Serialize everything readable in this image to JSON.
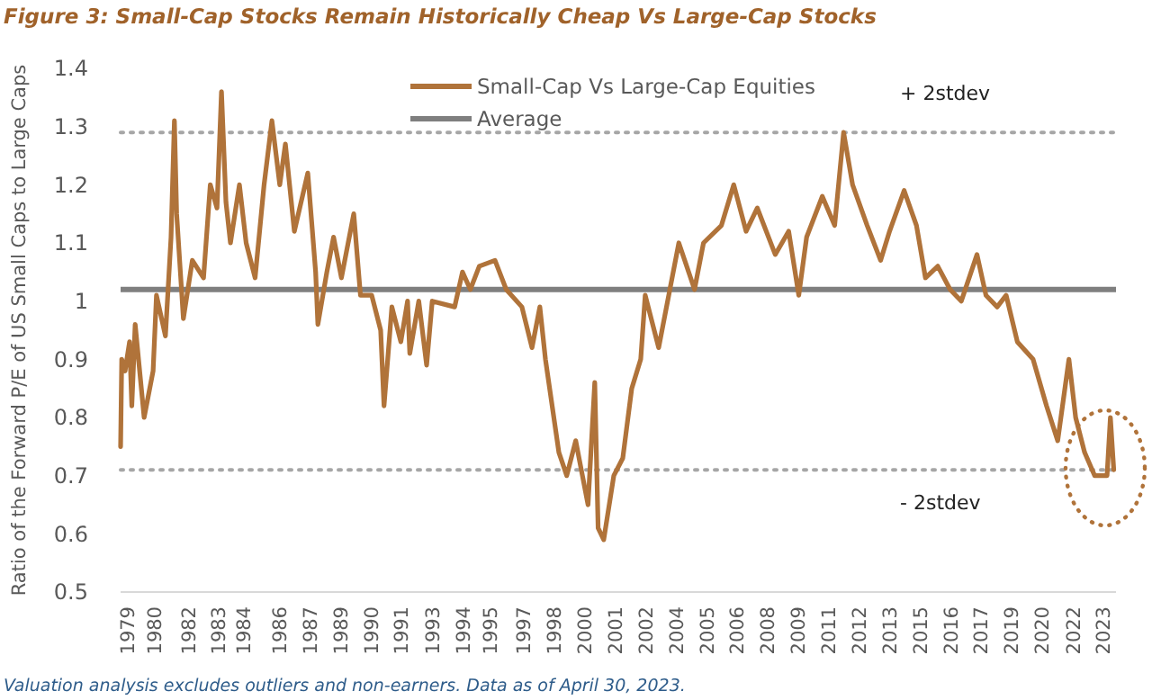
{
  "chart_data": {
    "type": "line",
    "title": "Figure 3: Small-Cap Stocks Remain Historically Cheap Vs Large-Cap Stocks",
    "ylabel": "Ratio of the Forward P/E of US Small Caps to Large Caps",
    "annotations": [
      "Valuation analysis excludes outliers and non-earners.  Data as of April 30, 2023."
    ],
    "series": [
      {
        "name": "Small-Cap Vs Large-Cap Equities",
        "color": "#b0733a",
        "x": [
          1979.0,
          1979.05,
          1979.2,
          1979.4,
          1979.5,
          1979.65,
          1980.05,
          1980.45,
          1980.6,
          1981.0,
          1981.25,
          1981.4,
          1981.5,
          1981.8,
          1982.2,
          1982.7,
          1983.0,
          1983.3,
          1983.5,
          1983.7,
          1983.9,
          1984.3,
          1984.6,
          1985.0,
          1985.4,
          1985.75,
          1986.1,
          1986.35,
          1986.75,
          1987.35,
          1987.7,
          1987.8,
          1988.2,
          1988.5,
          1988.85,
          1989.4,
          1989.7,
          1990.2,
          1990.6,
          1990.75,
          1991.1,
          1991.5,
          1991.8,
          1991.9,
          1992.3,
          1992.65,
          1992.9,
          1993.9,
          1994.25,
          1994.6,
          1995.0,
          1995.7,
          1996.2,
          1996.9,
          1997.35,
          1997.7,
          1997.95,
          1998.55,
          1998.9,
          1999.3,
          1999.85,
          2000.15,
          2000.3,
          2000.55,
          2001.0,
          2001.4,
          2001.8,
          2002.2,
          2002.4,
          2003.0,
          2003.5,
          2003.9,
          2004.6,
          2005.0,
          2005.8,
          2006.35,
          2006.9,
          2007.4,
          2008.2,
          2008.8,
          2009.25,
          2009.6,
          2010.3,
          2010.85,
          2011.25,
          2011.65,
          2012.3,
          2012.9,
          2013.3,
          2013.95,
          2014.5,
          2014.9,
          2015.45,
          2016.0,
          2016.5,
          2017.2,
          2017.6,
          2018.1,
          2018.5,
          2019.0,
          2019.7,
          2020.3,
          2020.8,
          2021.3,
          2021.6,
          2022.0,
          2022.45,
          2023.0,
          2023.15,
          2023.3
        ],
        "values": [
          0.75,
          0.9,
          0.88,
          0.93,
          0.82,
          0.96,
          0.8,
          0.88,
          1.01,
          0.94,
          1.11,
          1.31,
          1.15,
          0.97,
          1.07,
          1.04,
          1.2,
          1.16,
          1.36,
          1.17,
          1.1,
          1.2,
          1.1,
          1.04,
          1.2,
          1.31,
          1.2,
          1.27,
          1.12,
          1.22,
          1.05,
          0.96,
          1.05,
          1.11,
          1.04,
          1.15,
          1.01,
          1.01,
          0.95,
          0.82,
          0.99,
          0.93,
          1.0,
          0.91,
          1.0,
          0.89,
          1.0,
          0.99,
          1.05,
          1.02,
          1.06,
          1.07,
          1.02,
          0.99,
          0.92,
          0.99,
          0.9,
          0.74,
          0.7,
          0.76,
          0.65,
          0.86,
          0.61,
          0.59,
          0.7,
          0.73,
          0.85,
          0.9,
          1.01,
          0.92,
          1.02,
          1.1,
          1.02,
          1.1,
          1.13,
          1.2,
          1.12,
          1.16,
          1.08,
          1.12,
          1.01,
          1.11,
          1.18,
          1.13,
          1.29,
          1.2,
          1.13,
          1.07,
          1.12,
          1.19,
          1.13,
          1.04,
          1.06,
          1.02,
          1.0,
          1.08,
          1.01,
          0.99,
          1.01,
          0.93,
          0.9,
          0.82,
          0.76,
          0.9,
          0.8,
          0.74,
          0.7,
          0.7,
          0.8,
          0.71
        ]
      }
    ],
    "ref_lines": [
      {
        "axis": "y",
        "value": 1.02,
        "label": "Average",
        "color": "#7f7f7f",
        "line_style": "solid"
      },
      {
        "axis": "y",
        "value": 1.29,
        "label": "+ 2stdev",
        "color": "#a6a6a6",
        "line_style": "dotted"
      },
      {
        "axis": "y",
        "value": 0.71,
        "label": "- 2stdev",
        "color": "#a6a6a6",
        "line_style": "dotted"
      }
    ],
    "xlim": [
      1979,
      2023.4
    ],
    "xticks": [
      {
        "value": 1979.3,
        "label": "1979"
      },
      {
        "value": 1980.5,
        "label": "1980"
      },
      {
        "value": 1982.02,
        "label": "1982"
      },
      {
        "value": 1983.38,
        "label": "1983"
      },
      {
        "value": 1984.5,
        "label": "1984"
      },
      {
        "value": 1986.1,
        "label": "1986"
      },
      {
        "value": 1987.46,
        "label": "1987"
      },
      {
        "value": 1988.82,
        "label": "1989"
      },
      {
        "value": 1990.18,
        "label": "1990"
      },
      {
        "value": 1991.5,
        "label": "1991"
      },
      {
        "value": 1992.9,
        "label": "1993"
      },
      {
        "value": 1994.26,
        "label": "1994"
      },
      {
        "value": 1995.5,
        "label": "1995"
      },
      {
        "value": 1996.98,
        "label": "1997"
      },
      {
        "value": 1998.34,
        "label": "1998"
      },
      {
        "value": 1999.7,
        "label": "2000"
      },
      {
        "value": 2001.06,
        "label": "2001"
      },
      {
        "value": 2002.42,
        "label": "2002"
      },
      {
        "value": 2003.78,
        "label": "2004"
      },
      {
        "value": 2005.14,
        "label": "2005"
      },
      {
        "value": 2006.5,
        "label": "2006"
      },
      {
        "value": 2007.86,
        "label": "2008"
      },
      {
        "value": 2009.22,
        "label": "2009"
      },
      {
        "value": 2010.58,
        "label": "2011"
      },
      {
        "value": 2011.94,
        "label": "2012"
      },
      {
        "value": 2013.3,
        "label": "2013"
      },
      {
        "value": 2014.66,
        "label": "2015"
      },
      {
        "value": 2016.02,
        "label": "2016"
      },
      {
        "value": 2017.38,
        "label": "2017"
      },
      {
        "value": 2018.74,
        "label": "2019"
      },
      {
        "value": 2020.1,
        "label": "2020"
      },
      {
        "value": 2021.5,
        "label": "2022"
      },
      {
        "value": 2022.82,
        "label": "2023"
      }
    ],
    "ylim": [
      0.5,
      1.4
    ],
    "yticks": [
      0.5,
      0.6,
      0.7,
      0.8,
      0.9,
      1,
      1.1,
      1.2,
      1.3,
      1.4
    ],
    "grid": false,
    "legend": "top",
    "marker": "none",
    "line_style": "solid"
  }
}
